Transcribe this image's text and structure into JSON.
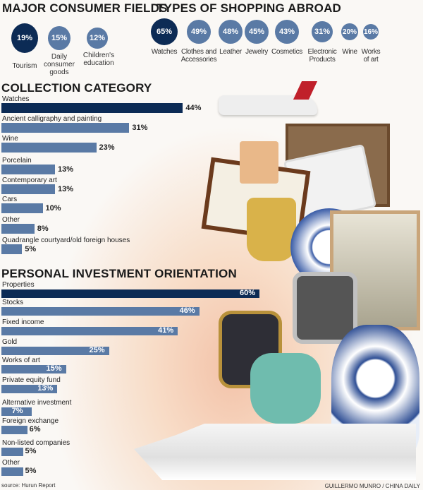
{
  "consumer_fields": {
    "title": "MAJOR CONSUMER FIELDS",
    "items": [
      {
        "value": "19%",
        "label": "Tourism"
      },
      {
        "value": "15%",
        "label": "Daily consumer goods"
      },
      {
        "value": "12%",
        "label": "Children's education"
      }
    ]
  },
  "shopping_abroad": {
    "title": "TYPES OF SHOPPING ABROAD",
    "items": [
      {
        "value": "65%",
        "label": "Watches"
      },
      {
        "value": "49%",
        "label": "Clothes and Accessories"
      },
      {
        "value": "48%",
        "label": "Leather"
      },
      {
        "value": "45%",
        "label": "Jewelry"
      },
      {
        "value": "43%",
        "label": "Cosmetics"
      },
      {
        "value": "31%",
        "label": "Electronic Products"
      },
      {
        "value": "20%",
        "label": "Wine"
      },
      {
        "value": "16%",
        "label": "Works of art"
      }
    ]
  },
  "chart_data": [
    {
      "type": "bar",
      "title": "COLLECTION CATEGORY",
      "orientation": "horizontal",
      "categories": [
        "Watches",
        "Ancient calligraphy and painting",
        "Wine",
        "Porcelain",
        "Contemporary art",
        "Cars",
        "Other",
        "Quadrangle courtyard/old foreign houses"
      ],
      "values": [
        44,
        31,
        23,
        13,
        13,
        10,
        8,
        5
      ],
      "labels": [
        "44%",
        "31%",
        "23%",
        "13%",
        "13%",
        "10%",
        "8%",
        "5%"
      ],
      "unit": "%"
    },
    {
      "type": "bar",
      "title": "PERSONAL INVESTMENT ORIENTATION",
      "orientation": "horizontal",
      "categories": [
        "Properties",
        "Stocks",
        "Fixed income",
        "Gold",
        "Works of art",
        "Private equity fund",
        "Alternative investment",
        "Foreign exchange",
        "Non-listed companies",
        "Other"
      ],
      "values": [
        60,
        46,
        41,
        25,
        15,
        13,
        7,
        6,
        5,
        5
      ],
      "labels": [
        "60%",
        "46%",
        "41%",
        "25%",
        "15%",
        "13%",
        "7%",
        "6%",
        "5%",
        "5%"
      ],
      "unit": "%"
    }
  ],
  "colors": {
    "highlight": "#0c2b55",
    "bar": "#5a7aa5"
  },
  "footer": {
    "source": "source: Hurun Report",
    "credit": "GUILLERMO MUNRO / CHINA DAILY"
  }
}
